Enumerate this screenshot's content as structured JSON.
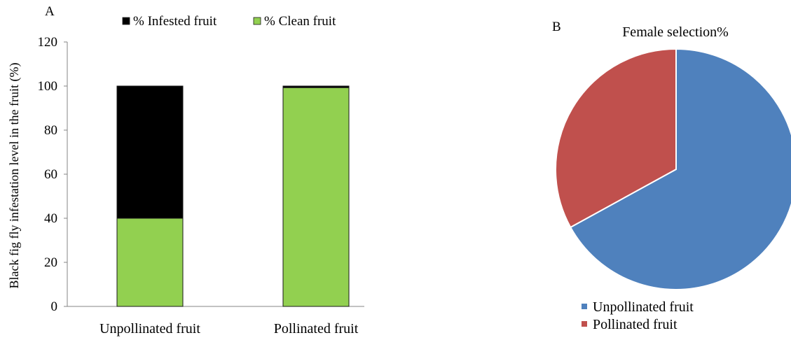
{
  "chart_data": [
    {
      "panel": "A",
      "type": "bar",
      "stacked": true,
      "categories": [
        "Unpollinated fruit",
        "Pollinated fruit"
      ],
      "series": [
        {
          "name": "% Clean fruit",
          "values": [
            40,
            99.3
          ],
          "color": "#92d050"
        },
        {
          "name": "% Infested fruit",
          "values": [
            60,
            0.7
          ],
          "color": "#000000"
        }
      ],
      "legend": [
        "% Infested fruit",
        "% Clean fruit"
      ],
      "legend_position": "top",
      "ylabel": "Black fig fly infestation level in the fruit (%)",
      "xlabel": "",
      "ylim": [
        0,
        120
      ],
      "yticks": [
        "0",
        "20",
        "40",
        "60",
        "80",
        "100",
        "120"
      ],
      "grid": false
    },
    {
      "panel": "B",
      "type": "pie",
      "title": "Female selection%",
      "slices": [
        {
          "name": "Unpollinated fruit",
          "value": 67,
          "color": "#4f81bd"
        },
        {
          "name": "Pollinated fruit",
          "value": 33,
          "color": "#c0504d"
        }
      ],
      "legend_position": "bottom"
    }
  ]
}
